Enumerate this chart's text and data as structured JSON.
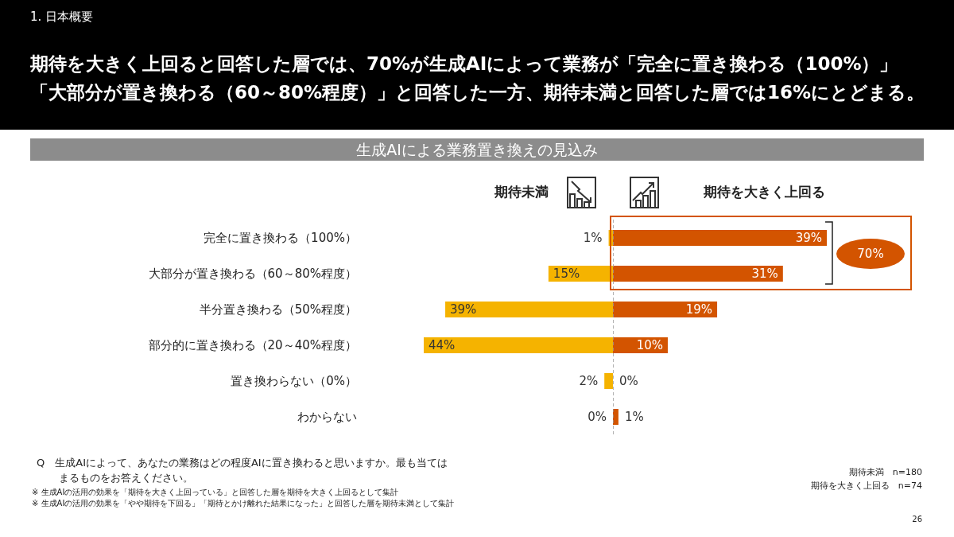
{
  "chart_data": [
    {
      "type": "bar",
      "orientation": "horizontal",
      "title": "期待を大きく上回ると回答した層では、70%が生成AIによって業務が「完全に置き換わる（100%）」「大部分が置き換わる（60～80%程度）」と回答した一方、期待未満と回答した層では16%にとどまる。",
      "subtitle": "生成AIによる業務置き換えの見込み",
      "categories": [
        "完全に置き換わる（100%）",
        "大部分が置き換わる（60～80%程度）",
        "半分置き換わる（50%程度）",
        "部分的に置き換わる（20～40%程度）",
        "置き換わらない（0%）",
        "わからない"
      ],
      "series": [
        {
          "name": "期待未満",
          "color": "#f5b300",
          "values": [
            1,
            15,
            39,
            44,
            2,
            0
          ],
          "value_labels": [
            "1%",
            "15%",
            "39%",
            "44%",
            "2%",
            "0%"
          ]
        }
      ],
      "xlim": [
        44,
        0
      ],
      "tick_labels": "y",
      "legend": "top",
      "annotations": [
        "1. 日本概要",
        "Q　生成AIによって、あなたの業務はどの程度AIに置き換わると思いますか。最も当てはまるものをお答えください。",
        "※ 生成AIの活用の効果を「期待を大きく上回っている」と回答した層を期待を大きく上回るとして集計",
        "※ 生成AIの活用の効果を「やや期待を下回る」「期待とかけ離れた結果になった」と回答した層を期待未満として集計",
        "期待未満　n=180",
        "期待を大きく上回る　n=74",
        "26"
      ]
    },
    {
      "type": "bar",
      "orientation": "horizontal",
      "categories": [
        null,
        null,
        null,
        null,
        null,
        null
      ],
      "series": [
        {
          "name": "期待を大きく上回る",
          "color": "#d35400",
          "values": [
            39,
            31,
            19,
            10,
            0,
            1
          ],
          "value_labels": [
            "39%",
            "31%",
            "19%",
            "10%",
            "0%",
            "1%"
          ]
        }
      ],
      "xlim": [
        0,
        39
      ],
      "legend": "top",
      "ref_lines": [
        {
          "axis": "x",
          "value": 0,
          "label": null,
          "color": "#999999",
          "line_style": "dashed"
        }
      ],
      "annotations": [
        "70%"
      ]
    }
  ]
}
